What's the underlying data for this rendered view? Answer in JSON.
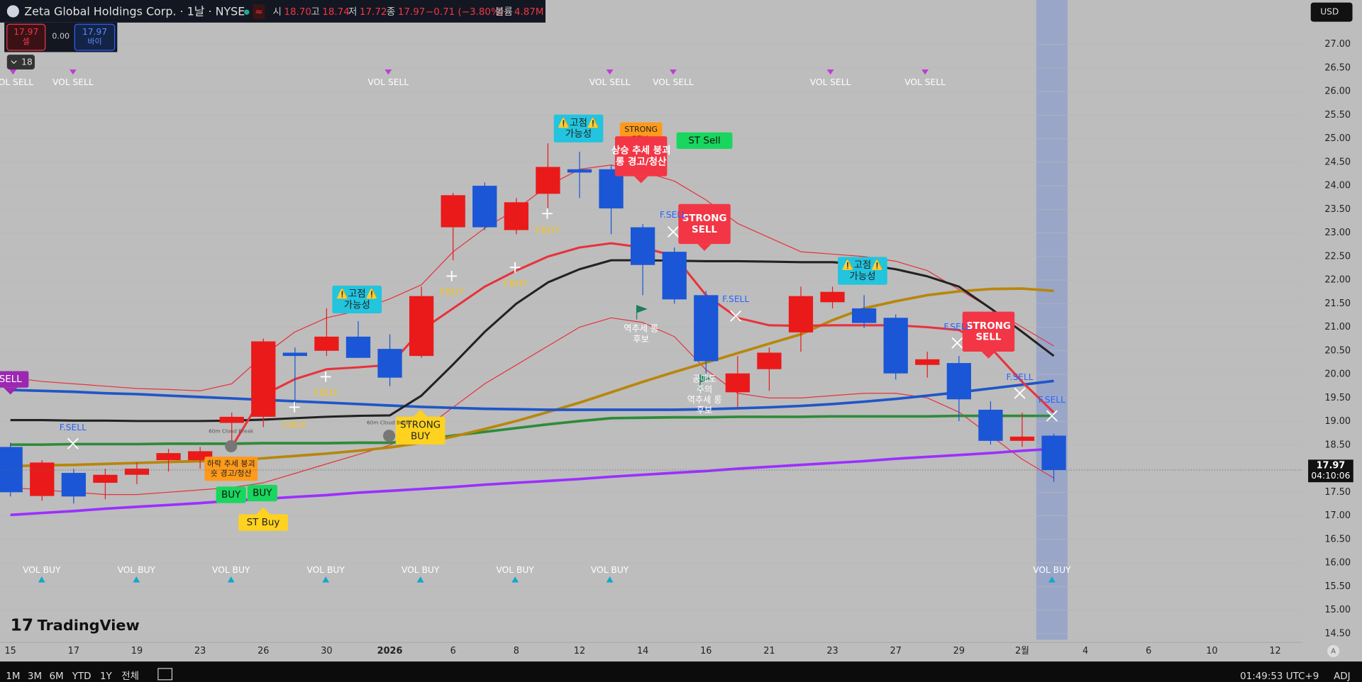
{
  "header": {
    "title": "Zeta Global Holdings Corp. · 1날 · NYSE",
    "quote": [
      [
        "시",
        "18.70"
      ],
      [
        "고",
        "18.74"
      ],
      [
        "저",
        "17.72"
      ],
      [
        "종",
        "17.97"
      ]
    ],
    "change": "−0.71 (−3.80%)",
    "volume_label": "볼륨",
    "volume": "4.87M",
    "sell_price": "17.97",
    "sell_label": "셀",
    "spread": "0.00",
    "buy_price": "17.97",
    "buy_label": "바이",
    "indicator_count": "18",
    "currency": "USD"
  },
  "chart_data": {
    "type": "candlestick",
    "categories": [
      "15",
      null,
      "17",
      null,
      "19",
      null,
      "23",
      null,
      "26",
      null,
      "30",
      null,
      "2026",
      null,
      "6",
      null,
      "8",
      null,
      "12",
      null,
      "14",
      null,
      "16",
      null,
      "21",
      null,
      "23",
      null,
      "27",
      null,
      "29",
      null,
      "2월",
      null,
      "4",
      null,
      "6",
      null,
      "10",
      null,
      "12"
    ],
    "open": [
      18.46,
      17.42,
      17.91,
      17.7,
      17.87,
      18.18,
      18.18,
      18.97,
      19.1,
      20.46,
      20.5,
      20.8,
      20.54,
      20.39,
      23.12,
      24.0,
      23.06,
      23.83,
      24.35,
      24.35,
      23.12,
      22.6,
      21.68,
      19.62,
      20.11,
      20.89,
      21.53,
      21.4,
      21.2,
      20.2,
      20.24,
      19.25,
      18.59,
      18.7,
      null,
      null,
      null,
      null,
      null,
      null,
      null
    ],
    "high": [
      18.55,
      18.18,
      18.0,
      18.0,
      18.13,
      18.42,
      18.46,
      19.19,
      20.76,
      20.57,
      21.4,
      21.13,
      20.85,
      21.86,
      23.85,
      24.07,
      23.74,
      24.9,
      24.72,
      24.44,
      23.19,
      22.69,
      21.77,
      20.39,
      20.57,
      21.86,
      21.86,
      21.68,
      21.27,
      20.48,
      20.39,
      19.43,
      19.19,
      18.74,
      null,
      null,
      null,
      null,
      null,
      null,
      null
    ],
    "low": [
      17.41,
      17.32,
      17.26,
      17.35,
      17.67,
      17.94,
      18.0,
      18.55,
      18.88,
      19.29,
      20.39,
      20.35,
      19.75,
      20.35,
      22.42,
      23.06,
      22.97,
      23.52,
      23.74,
      22.97,
      21.68,
      21.5,
      20.02,
      19.29,
      19.65,
      20.48,
      21.4,
      20.98,
      19.89,
      19.93,
      19.01,
      18.51,
      18.46,
      17.72,
      null,
      null,
      null,
      null,
      null,
      null,
      null
    ],
    "close": [
      17.5,
      18.13,
      17.41,
      17.87,
      18.0,
      18.33,
      18.37,
      19.1,
      20.7,
      20.39,
      20.8,
      20.35,
      19.93,
      21.66,
      23.8,
      23.12,
      23.65,
      24.4,
      24.28,
      23.52,
      22.32,
      21.59,
      20.28,
      20.02,
      20.46,
      21.66,
      21.75,
      21.09,
      20.02,
      20.32,
      19.47,
      18.59,
      18.68,
      17.97,
      null,
      null,
      null,
      null,
      null,
      null,
      null
    ],
    "up_color": "#ea1a1a",
    "down_color": "#1a56d6",
    "overlays": [
      {
        "color": "#e8323c",
        "values": [
          19.93,
          19.85,
          19.8,
          19.75,
          19.7,
          19.68,
          19.65,
          19.8,
          20.4,
          20.9,
          21.2,
          21.35,
          21.6,
          21.9,
          22.6,
          23.1,
          23.5,
          24.0,
          24.35,
          24.44,
          24.3,
          24.1,
          23.7,
          23.2,
          22.9,
          22.6,
          22.55,
          22.5,
          22.4,
          22.2,
          21.8,
          21.4,
          21.0,
          20.6,
          null,
          null,
          null,
          null,
          null,
          null,
          null
        ]
      },
      {
        "color": "#e8323c",
        "values": [
          17.6,
          17.55,
          17.5,
          17.45,
          17.45,
          17.5,
          17.55,
          17.6,
          17.7,
          17.9,
          18.1,
          18.3,
          18.5,
          18.8,
          19.3,
          19.8,
          20.2,
          20.6,
          21.0,
          21.2,
          21.1,
          20.8,
          20.1,
          19.6,
          19.5,
          19.5,
          19.55,
          19.6,
          19.6,
          19.5,
          19.2,
          18.7,
          18.2,
          17.8,
          null,
          null,
          null,
          null,
          null,
          null,
          null
        ]
      },
      {
        "color": "#9b30ff",
        "values": [
          17.02,
          17.06,
          17.1,
          17.15,
          17.19,
          17.23,
          17.27,
          17.32,
          17.36,
          17.4,
          17.44,
          17.49,
          17.53,
          17.57,
          17.61,
          17.66,
          17.7,
          17.74,
          17.78,
          17.83,
          17.87,
          17.91,
          17.95,
          18.0,
          18.04,
          18.08,
          18.12,
          18.16,
          18.21,
          18.25,
          18.29,
          18.33,
          18.38,
          18.42,
          null,
          null,
          null,
          null,
          null,
          null,
          null
        ]
      },
      {
        "color": "#2e8b3a",
        "values": [
          18.51,
          18.51,
          18.52,
          18.52,
          18.52,
          18.53,
          18.53,
          18.53,
          18.54,
          18.54,
          18.54,
          18.55,
          18.55,
          18.62,
          18.7,
          18.78,
          18.86,
          18.94,
          19.01,
          19.07,
          19.08,
          19.09,
          19.09,
          19.1,
          19.1,
          19.1,
          19.11,
          19.11,
          19.11,
          19.11,
          19.12,
          19.12,
          19.12,
          19.12,
          null,
          null,
          null,
          null,
          null,
          null,
          null
        ]
      },
      {
        "color": "#b8860b",
        "values": [
          18.05,
          18.07,
          18.08,
          18.1,
          18.12,
          18.14,
          18.16,
          18.18,
          18.22,
          18.27,
          18.32,
          18.38,
          18.45,
          18.55,
          18.68,
          18.84,
          19.01,
          19.2,
          19.4,
          19.62,
          19.84,
          20.05,
          20.25,
          20.45,
          20.65,
          20.85,
          21.15,
          21.4,
          21.55,
          21.68,
          21.76,
          21.81,
          21.82,
          21.77,
          null,
          null,
          null,
          null,
          null,
          null,
          null
        ]
      },
      {
        "color": "#1f56c8",
        "values": [
          19.67,
          19.65,
          19.63,
          19.6,
          19.58,
          19.55,
          19.52,
          19.49,
          19.46,
          19.43,
          19.4,
          19.37,
          19.34,
          19.31,
          19.29,
          19.27,
          19.26,
          19.25,
          19.25,
          19.25,
          19.25,
          19.25,
          19.26,
          19.28,
          19.3,
          19.33,
          19.37,
          19.42,
          19.48,
          19.55,
          19.62,
          19.7,
          19.78,
          19.86,
          null,
          null,
          null,
          null,
          null,
          null,
          null
        ]
      },
      {
        "color": "#222222",
        "values": [
          19.03,
          19.03,
          19.02,
          19.02,
          19.01,
          19.01,
          19.01,
          19.02,
          19.04,
          19.07,
          19.1,
          19.12,
          19.13,
          19.55,
          20.21,
          20.9,
          21.5,
          21.95,
          22.23,
          22.42,
          22.42,
          22.41,
          22.4,
          22.4,
          22.39,
          22.38,
          22.38,
          22.33,
          22.23,
          22.08,
          21.86,
          21.4,
          20.9,
          20.39,
          null,
          null,
          null,
          null,
          null,
          null,
          null
        ]
      },
      {
        "color": "#e8323c",
        "values": [
          null,
          null,
          null,
          null,
          null,
          null,
          null,
          18.46,
          19.56,
          19.9,
          20.11,
          20.15,
          20.2,
          20.94,
          21.4,
          21.86,
          22.2,
          22.5,
          22.69,
          22.78,
          22.69,
          22.51,
          21.68,
          21.2,
          21.04,
          21.03,
          21.04,
          21.04,
          21.04,
          21.0,
          20.94,
          20.57,
          19.84,
          19.19,
          null,
          null,
          null,
          null,
          null,
          null,
          null
        ]
      }
    ],
    "annotations": [
      [
        "VOL SELL"
      ],
      [
        "VOL SELL"
      ],
      [
        "VOL SELL"
      ],
      [
        "VOL SELL"
      ],
      [
        "VOL SELL"
      ],
      [
        "VOL SELL"
      ],
      [
        "VOL SELL"
      ],
      [
        "VOL BUY"
      ],
      [
        "VOL BUY"
      ],
      [
        "VOL BUY"
      ],
      [
        "VOL BUY"
      ],
      [
        "VOL BUY"
      ],
      [
        "VOL BUY"
      ],
      [
        "VOL BUY"
      ],
      [
        "VOL BUY"
      ],
      [
        "⚠️고점⚠️",
        "가능성"
      ],
      [
        "⚠️고점⚠️",
        "가능성"
      ],
      [
        "⚠️고점⚠️",
        "가능성"
      ],
      [
        "상승 추세 붕괴",
        "롱 경고/청산"
      ],
      [
        "STRONG",
        "SELL"
      ],
      [
        "STRONG",
        "SELL"
      ],
      [
        "STRONG",
        "SELL"
      ],
      [
        "ST Sell"
      ],
      [
        "STRONG",
        "BUY"
      ],
      [
        "BUY"
      ],
      [
        "BUY"
      ],
      [
        "하락 추세 붕괴",
        "숏 경고/청산"
      ],
      [
        "ST Buy"
      ],
      [
        "SELL"
      ],
      [
        "F.BUY"
      ],
      [
        "F.BUY"
      ],
      [
        "F.BUY"
      ],
      [
        "F.BUY"
      ],
      [
        "F.BUY"
      ],
      [
        "F.SELL"
      ],
      [
        "F.SELL"
      ],
      [
        "F.SELL"
      ],
      [
        "F.SELL"
      ],
      [
        "F.SELL"
      ],
      [
        "F.SELL"
      ],
      [
        "역추세 롱",
        "후보"
      ],
      [
        "공매도",
        "주의",
        "역추세 롱",
        "후보"
      ],
      [
        "60m Cloud Break"
      ],
      [
        "60m Cloud Break"
      ]
    ],
    "ylim": [
      14.37,
      27.94
    ],
    "yticks": [
      {
        "value": 14.5,
        "label": "14.50"
      },
      {
        "value": 15,
        "label": "15.00"
      },
      {
        "value": 15.5,
        "label": "15.50"
      },
      {
        "value": 16,
        "label": "16.00"
      },
      {
        "value": 16.5,
        "label": "16.50"
      },
      {
        "value": 17,
        "label": "17.00"
      },
      {
        "value": 17.5,
        "label": "17.50"
      },
      {
        "value": 18,
        "label": "18.00"
      },
      {
        "value": 18.5,
        "label": "18.50"
      },
      {
        "value": 19,
        "label": "19.00"
      },
      {
        "value": 19.5,
        "label": "19.50"
      },
      {
        "value": 20,
        "label": "20.00"
      },
      {
        "value": 20.5,
        "label": "20.50"
      },
      {
        "value": 21,
        "label": "21.00"
      },
      {
        "value": 21.5,
        "label": "21.50"
      },
      {
        "value": 22,
        "label": "22.00"
      },
      {
        "value": 22.5,
        "label": "22.50"
      },
      {
        "value": 23,
        "label": "23.00"
      },
      {
        "value": 23.5,
        "label": "23.50"
      },
      {
        "value": 24,
        "label": "24.00"
      },
      {
        "value": 24.5,
        "label": "24.50"
      },
      {
        "value": 25,
        "label": "25.00"
      },
      {
        "value": 25.5,
        "label": "25.50"
      },
      {
        "value": 26,
        "label": "26.00"
      },
      {
        "value": 26.5,
        "label": "26.50"
      },
      {
        "value": 27,
        "label": "27.00"
      }
    ],
    "last_price": 17.97,
    "countdown": "04:10:06"
  },
  "toolbar": {
    "ranges": [
      "1M",
      "3M",
      "6M",
      "YTD",
      "1Y",
      "전체"
    ],
    "clock": "01:49:53 UTC+9",
    "adj": "ADJ",
    "logo": "TradingView"
  }
}
